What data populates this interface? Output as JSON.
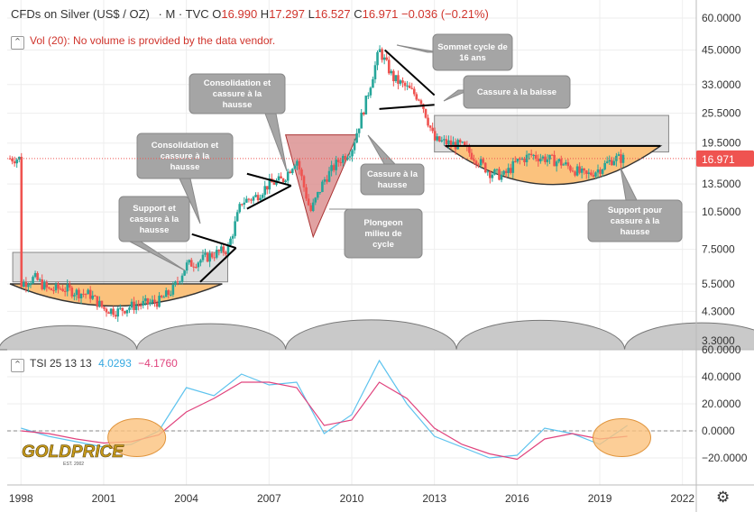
{
  "header": {
    "title": "CFDs on Silver (US$ / OZ)",
    "interval": "M",
    "source": "TVC",
    "open_label": "O",
    "open": "16.990",
    "high_label": "H",
    "high": "17.297",
    "low_label": "L",
    "low": "16.527",
    "close_label": "C",
    "close": "16.971",
    "change": "−0.036 (−0.21%)"
  },
  "volume_notice": "Vol (20): No volume is provided by the data vendor.",
  "tsi_legend": {
    "label": "TSI 25 13 13",
    "value1": "4.0293",
    "value2": "−4.1760"
  },
  "last_price_label": "16.971",
  "colors": {
    "up": "#26a69a",
    "down": "#ef5350",
    "tsi": "#5ec3ee",
    "signal": "#e0437d",
    "bowl": "#fbc27d",
    "zone": "#c8c8c8",
    "callout": "#a5a5a5"
  },
  "logo": {
    "text": "GOLDPRICE",
    "sub": "EST. 2002"
  },
  "annotations": [
    "Support et cassure à la hausse",
    "Consolidation et cassure à la hausse",
    "Consolidation et cassure à la hausse",
    "Plongeon milieu de cycle",
    "Cassure à la hausse",
    "Sommet cycle de 16 ans",
    "Cassure à la baisse",
    "Support pour cassure à la hausse"
  ],
  "chart_data": [
    {
      "type": "candlestick",
      "y_scale": "log",
      "ylim": [
        3.3,
        60
      ],
      "y_ticks": [
        "60.0000",
        "45.0000",
        "33.0000",
        "25.5000",
        "19.5000",
        "13.5000",
        "10.5000",
        "7.5000",
        "5.5000",
        "4.3000",
        "3.3000"
      ],
      "x_ticks": [
        "1998",
        "2001",
        "2004",
        "2007",
        "2010",
        "2013",
        "2016",
        "2019",
        "2022"
      ],
      "xlim": [
        1997.5,
        2022.5
      ],
      "series": [
        {
          "x": [
            1998,
            1998.5,
            1999,
            1999.5,
            2000,
            2000.5,
            2001,
            2001.5,
            2002,
            2002.5,
            2003,
            2003.5,
            2004,
            2004.5,
            2005,
            2005.5,
            2006,
            2006.5,
            2007,
            2007.5,
            2008,
            2008.5,
            2009,
            2009.5,
            2010,
            2010.5,
            2011,
            2011.5,
            2012,
            2012.5,
            2013,
            2013.5,
            2014,
            2014.5,
            2015,
            2015.5,
            2016,
            2016.5,
            2017,
            2017.5,
            2018,
            2018.5,
            2019,
            2019.5,
            2020
          ],
          "values": [
            5.5,
            5.8,
            5.2,
            5.3,
            5.1,
            5.0,
            4.4,
            4.3,
            4.5,
            4.6,
            4.7,
            5.2,
            6.5,
            6.8,
            7.2,
            7.5,
            11.5,
            12.0,
            13.5,
            14.0,
            17.0,
            10.5,
            14.0,
            16.5,
            18.5,
            28.0,
            45.0,
            35.0,
            32.0,
            29.0,
            20.0,
            19.5,
            19.0,
            17.0,
            15.0,
            14.5,
            16.5,
            17.5,
            17.0,
            16.5,
            15.5,
            14.5,
            15.5,
            17.0,
            16.97
          ]
        }
      ]
    },
    {
      "type": "line",
      "name": "TSI 25 13 13",
      "ylim": [
        -28,
        60
      ],
      "y_ticks": [
        "60.0000",
        "40.0000",
        "20.0000",
        "0.0000",
        "−20.0000"
      ],
      "x": [
        1998,
        1999,
        2000,
        2001,
        2002,
        2003,
        2004,
        2005,
        2006,
        2007,
        2008,
        2009,
        2010,
        2011,
        2012,
        2013,
        2014,
        2015,
        2016,
        2017,
        2018,
        2019,
        2020
      ],
      "series": [
        {
          "name": "TSI",
          "values": [
            2,
            -4,
            -8,
            -12,
            -10,
            0,
            32,
            26,
            42,
            34,
            36,
            -2,
            12,
            52,
            20,
            -4,
            -12,
            -20,
            -18,
            2,
            -2,
            -10,
            4
          ]
        },
        {
          "name": "Signal",
          "values": [
            0,
            -2,
            -6,
            -9,
            -8,
            -3,
            14,
            24,
            36,
            36,
            32,
            4,
            8,
            36,
            24,
            2,
            -10,
            -17,
            -21,
            -6,
            -2,
            -6,
            -4
          ]
        }
      ]
    }
  ]
}
